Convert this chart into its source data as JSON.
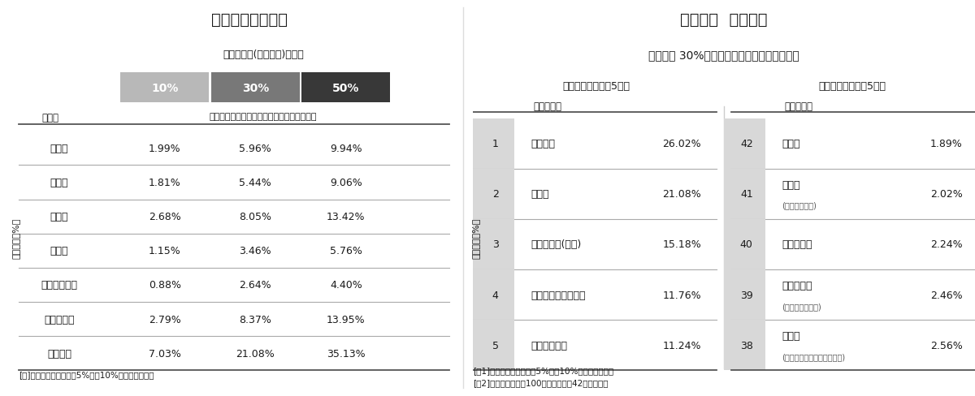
{
  "left_title": "業種別　賃上げ力",
  "left_subtitle": "当期純利益(内部留保)のうち",
  "left_col_header": "業種別",
  "left_col_subheader": "を人件費へ投資した場合の「賃上げ力」平均",
  "left_pct_labels": [
    "10%",
    "30%",
    "50%"
  ],
  "left_pct_colors": [
    "#b8b8b8",
    "#787878",
    "#383838"
  ],
  "left_ylabel": "賃上げ力（%）",
  "left_rows": [
    [
      "建設業",
      "1.99%",
      "5.96%",
      "9.94%"
    ],
    [
      "製造業",
      "1.81%",
      "5.44%",
      "9.06%"
    ],
    [
      "卸売業",
      "2.68%",
      "8.05%",
      "13.42%"
    ],
    [
      "小売業",
      "1.15%",
      "3.46%",
      "5.76%"
    ],
    [
      "運輸・通信業",
      "0.88%",
      "2.64%",
      "4.40%"
    ],
    [
      "サービス業",
      "2.79%",
      "8.37%",
      "13.95%"
    ],
    [
      "不動産業",
      "7.03%",
      "21.08%",
      "35.13%"
    ]
  ],
  "left_note": "[注]　各業種ともに上下5%、計10%のトリム平均値",
  "right_title": "業種詳細  賃上げ力",
  "right_subtitle": "（利益の 30%を人件費へ「投下」した場合）",
  "right_top_header": "「賃上げ力」上位5業種",
  "right_bottom_header": "「賃上げ力」下位5業種",
  "right_col_header": "業種詳細別",
  "right_ylabel": "賃上げ力（%）",
  "right_top_rows": [
    [
      "1",
      "農林水産",
      "26.02%"
    ],
    [
      "2",
      "不動産",
      "21.08%"
    ],
    [
      "3",
      "各種商品卸(商社)",
      "15.18%"
    ],
    [
      "4",
      "化学・石油製品製造",
      "11.76%"
    ],
    [
      "5",
      "自動車整備等",
      "11.24%"
    ]
  ],
  "right_bottom_rows": [
    [
      "42",
      "飲食店",
      "1.89%"
    ],
    [
      "41",
      "医療業|(病院・診療所)",
      "2.02%"
    ],
    [
      "40",
      "出版・印刷",
      "2.24%"
    ],
    [
      "39",
      "食料品小売|(食品スーパー等)",
      "2.46%"
    ],
    [
      "38",
      "運輸業|(トラック・バス・タクシー)",
      "2.56%"
    ]
  ],
  "right_note1": "[注1]　各業種ともに上下5%、計10%のトリム平均値",
  "right_note2": "[注2]　分析母数が「100社」以上の計42業種が対象",
  "bg_color": "#ffffff",
  "row_bg_gray": "#d8d8d8",
  "line_color_dark": "#555555",
  "line_color_light": "#aaaaaa",
  "text_color": "#1a1a1a",
  "text_color_sub": "#555555"
}
